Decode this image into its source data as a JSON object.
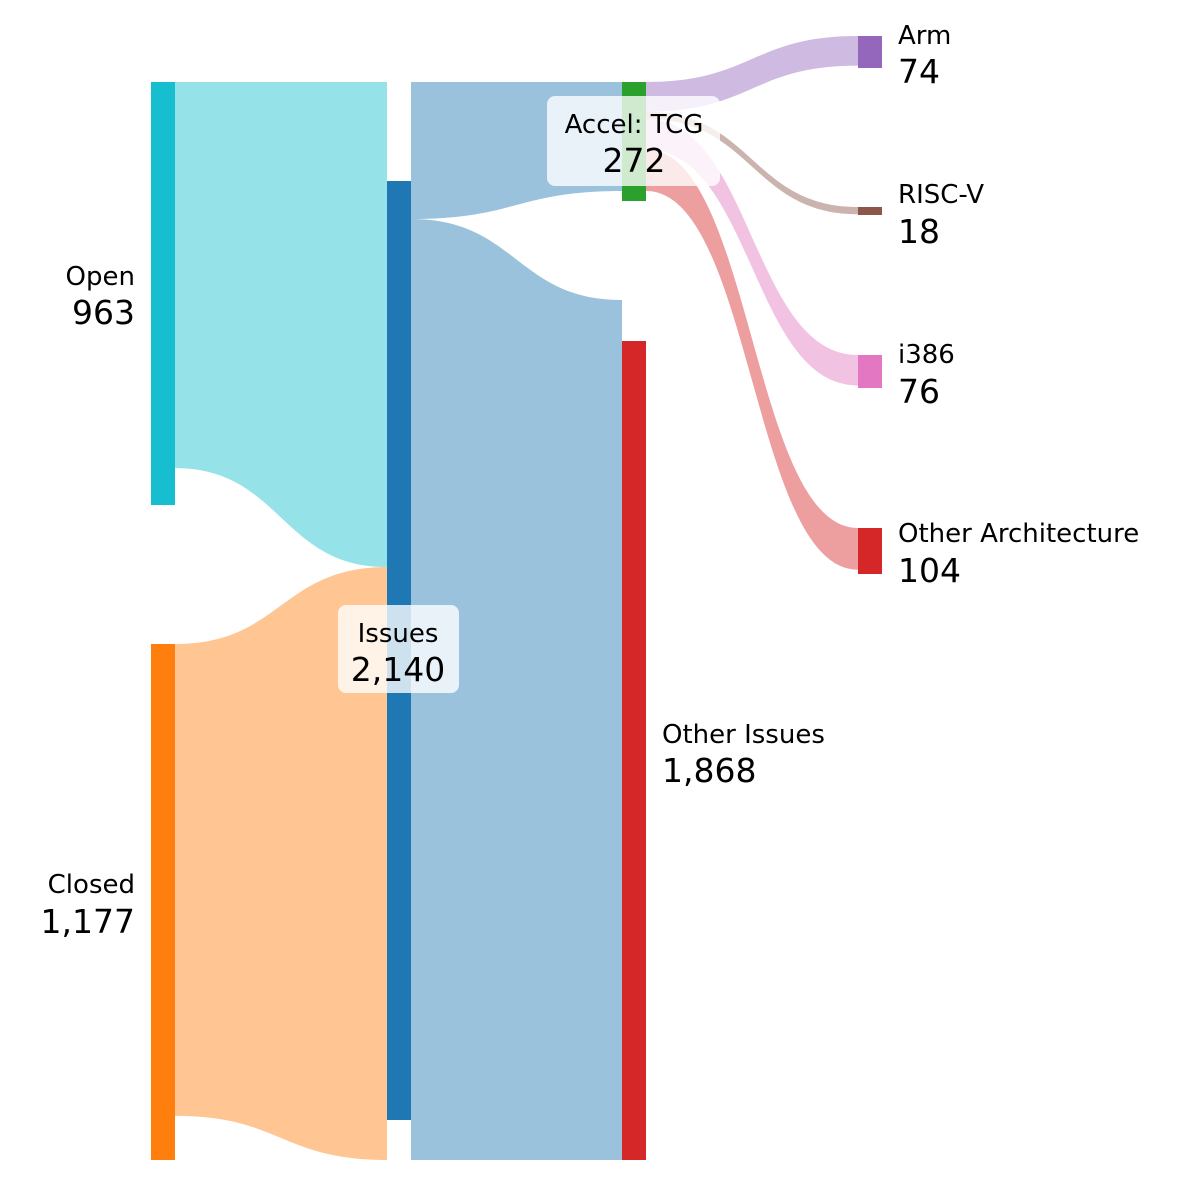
{
  "chart_data": {
    "type": "sankey",
    "nodes": [
      {
        "id": "open",
        "name": "Open",
        "value_label": "963",
        "color": "#17becf"
      },
      {
        "id": "closed",
        "name": "Closed",
        "value_label": "1,177",
        "color": "#ff7f0e"
      },
      {
        "id": "issues",
        "name": "Issues",
        "value_label": "2,140",
        "color": "#1f77b4"
      },
      {
        "id": "accel_tcg",
        "name": "Accel: TCG",
        "value_label": "272",
        "color": "#2ca02c"
      },
      {
        "id": "other_issues",
        "name": "Other Issues",
        "value_label": "1,868",
        "color": "#d62728"
      },
      {
        "id": "arm",
        "name": "Arm",
        "value_label": "74",
        "color": "#9467bd"
      },
      {
        "id": "riscv",
        "name": "RISC-V",
        "value_label": "18",
        "color": "#8c564b"
      },
      {
        "id": "i386",
        "name": "i386",
        "value_label": "76",
        "color": "#e377c2"
      },
      {
        "id": "other_arch",
        "name": "Other Architecture",
        "value_label": "104",
        "color": "#d62728"
      }
    ],
    "links": [
      {
        "source": "open",
        "target": "issues",
        "value": 963,
        "color": "#17becf"
      },
      {
        "source": "closed",
        "target": "issues",
        "value": 1177,
        "color": "#ff7f0e"
      },
      {
        "source": "issues",
        "target": "accel_tcg",
        "value": 272,
        "color": "#1f77b4"
      },
      {
        "source": "issues",
        "target": "other_issues",
        "value": 1868,
        "color": "#1f77b4"
      },
      {
        "source": "accel_tcg",
        "target": "arm",
        "value": 74,
        "color": "#9467bd"
      },
      {
        "source": "accel_tcg",
        "target": "riscv",
        "value": 18,
        "color": "#8c564b"
      },
      {
        "source": "accel_tcg",
        "target": "i386",
        "value": 76,
        "color": "#e377c2"
      },
      {
        "source": "accel_tcg",
        "target": "other_arch",
        "value": 104,
        "color": "#d62728"
      }
    ]
  }
}
